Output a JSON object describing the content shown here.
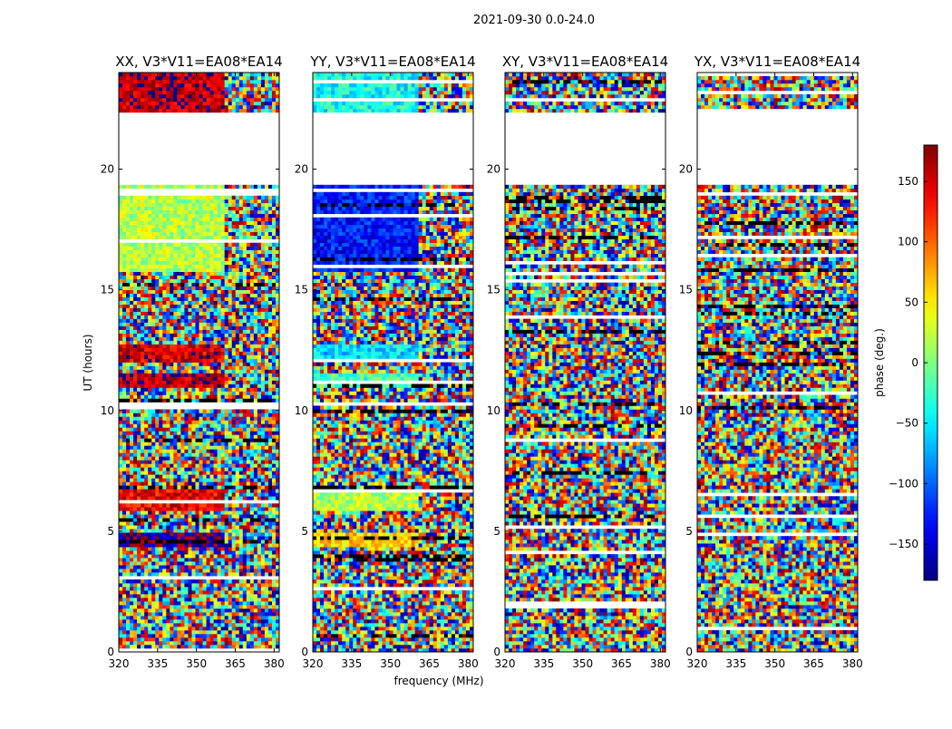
{
  "figure": {
    "suptitle": "2021-09-30 0.0-24.0",
    "ylabel": "UT (hours)",
    "xlabel": "frequency (MHz)",
    "colorbar_label": "phase (deg.)",
    "colorbar_ticks": [
      "150",
      "100",
      "50",
      "0",
      "−50",
      "−100",
      "−150"
    ],
    "colormap": "jet",
    "colors": {
      "jet_low": "#00007f",
      "jet_blue": "#0000ff",
      "jet_cyan": "#00ffff",
      "jet_yellow": "#ffff00",
      "jet_red": "#ff0000",
      "jet_high": "#7f0000",
      "flagged": "#ffffff",
      "dark_row": "#000000"
    }
  },
  "chart_data": {
    "type": "heatmap",
    "x_axis": {
      "label": "frequency (MHz)",
      "range": [
        320,
        382
      ],
      "ticks": [
        "320",
        "335",
        "350",
        "365",
        "380"
      ]
    },
    "y_axis": {
      "label": "UT (hours)",
      "range": [
        0,
        24
      ],
      "ticks": [
        "0",
        "5",
        "10",
        "15",
        "20"
      ]
    },
    "colorbar": {
      "label": "phase (deg.)",
      "range": [
        -180,
        180
      ],
      "ticks": [
        150,
        100,
        50,
        0,
        -50,
        -100,
        -150
      ]
    },
    "flagged_time_range_hours": [
      19.3,
      22.3
    ],
    "panels": [
      {
        "title": "XX, V3*V11=EA08*EA14",
        "coherent_bands": [
          {
            "t0": 22.3,
            "t1": 24.0,
            "phase": 160
          },
          {
            "t0": 15.8,
            "t1": 19.3,
            "phase": 20
          },
          {
            "t0": 12.0,
            "t1": 12.8,
            "phase": 150
          },
          {
            "t0": 10.9,
            "t1": 11.5,
            "phase": 160
          },
          {
            "t0": 5.8,
            "t1": 6.8,
            "phase": 140
          },
          {
            "t0": 4.4,
            "t1": 4.9,
            "phase": -170
          }
        ]
      },
      {
        "title": "YY, V3*V11=EA08*EA14",
        "coherent_bands": [
          {
            "t0": 22.3,
            "t1": 24.0,
            "phase": -40
          },
          {
            "t0": 15.8,
            "t1": 19.3,
            "phase": -130
          },
          {
            "t0": 12.0,
            "t1": 12.8,
            "phase": -60
          },
          {
            "t0": 10.9,
            "t1": 11.5,
            "phase": -20
          },
          {
            "t0": 5.8,
            "t1": 6.8,
            "phase": 20
          },
          {
            "t0": 4.4,
            "t1": 4.9,
            "phase": 60
          }
        ]
      },
      {
        "title": "XY, V3*V11=EA08*EA14",
        "coherent_bands": []
      },
      {
        "title": "YX, V3*V11=EA08*EA14",
        "coherent_bands": []
      }
    ]
  }
}
